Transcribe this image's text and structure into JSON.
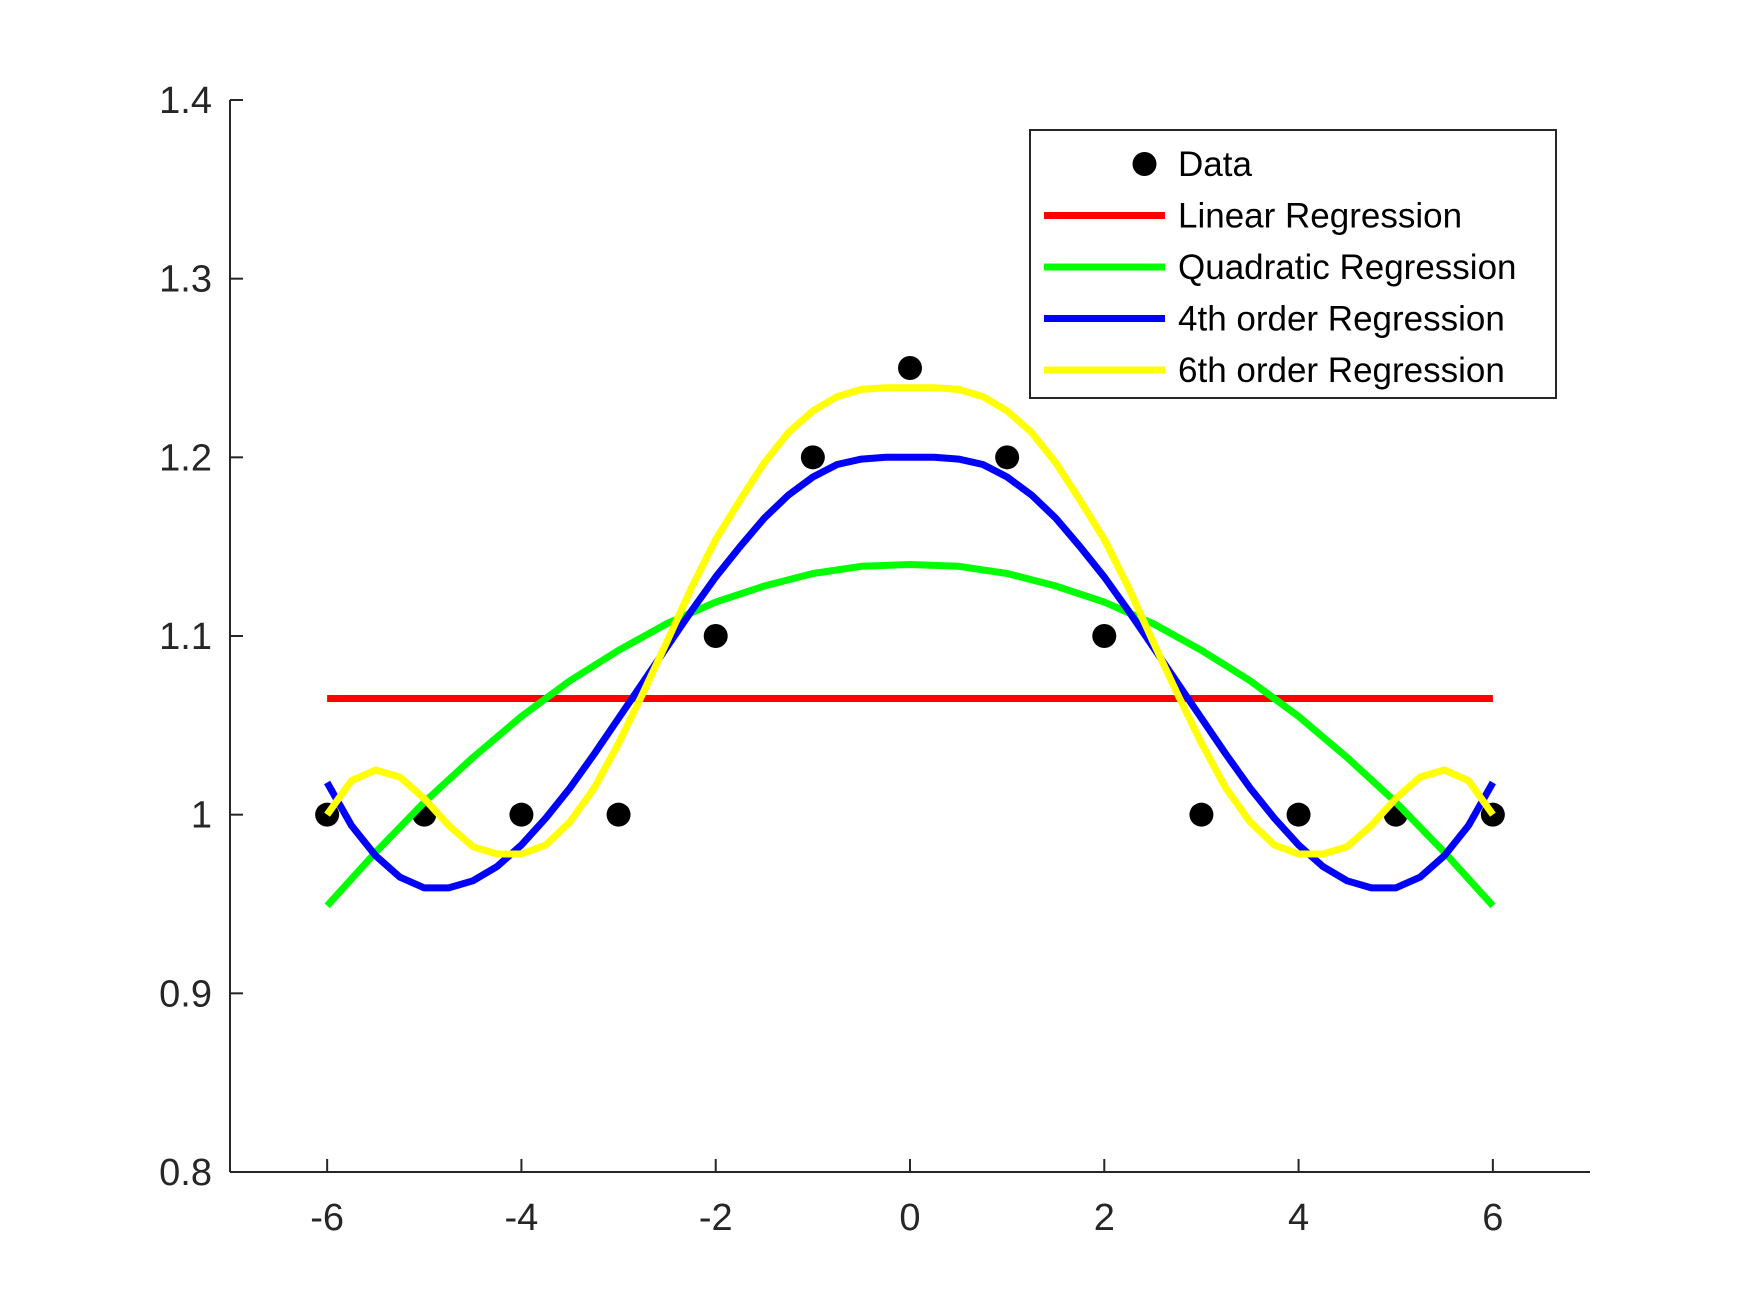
{
  "chart_data": {
    "type": "line",
    "title": "",
    "xlabel": "",
    "ylabel": "",
    "xlim": [
      -7,
      7
    ],
    "ylim": [
      0.8,
      1.4
    ],
    "x_ticks": [
      -6,
      -4,
      -2,
      0,
      2,
      4,
      6
    ],
    "x_tick_labels": [
      "-6",
      "-4",
      "-2",
      "0",
      "2",
      "4",
      "6"
    ],
    "y_ticks": [
      0.8,
      0.9,
      1.0,
      1.1,
      1.2,
      1.3,
      1.4
    ],
    "y_tick_labels": [
      "0.8",
      "0.9",
      "1",
      "1.1",
      "1.2",
      "1.3",
      "1.4"
    ],
    "grid": false,
    "legend_position": "top-right",
    "series": [
      {
        "name": "Data",
        "kind": "scatter",
        "color": "#000000",
        "x": [
          -6,
          -5,
          -4,
          -3,
          -2,
          -1,
          0,
          1,
          2,
          3,
          4,
          5,
          6
        ],
        "y": [
          1.0,
          1.0,
          1.0,
          1.0,
          1.1,
          1.2,
          1.25,
          1.2,
          1.1,
          1.0,
          1.0,
          1.0,
          1.0
        ]
      },
      {
        "name": "Linear Regression",
        "kind": "line",
        "color": "#ff0000",
        "x": [
          -6,
          -5,
          -4,
          -3,
          -2,
          -1,
          0,
          1,
          2,
          3,
          4,
          5,
          6
        ],
        "y": [
          1.065,
          1.065,
          1.065,
          1.065,
          1.065,
          1.065,
          1.065,
          1.065,
          1.065,
          1.065,
          1.065,
          1.065,
          1.065
        ]
      },
      {
        "name": "Quadratic Regression",
        "kind": "line",
        "color": "#00ff00",
        "x": [
          -6,
          -5.5,
          -5,
          -4.5,
          -4,
          -3.5,
          -3,
          -2.5,
          -2,
          -1.5,
          -1,
          -0.5,
          0,
          0.5,
          1,
          1.5,
          2,
          2.5,
          3,
          3.5,
          4,
          4.5,
          5,
          5.5,
          6
        ],
        "y": [
          0.949,
          0.979,
          1.007,
          1.032,
          1.055,
          1.075,
          1.092,
          1.107,
          1.119,
          1.128,
          1.135,
          1.139,
          1.14,
          1.139,
          1.135,
          1.128,
          1.119,
          1.107,
          1.092,
          1.075,
          1.055,
          1.032,
          1.007,
          0.979,
          0.949
        ]
      },
      {
        "name": "4th order Regression",
        "kind": "line",
        "color": "#0000ff",
        "x": [
          -6,
          -5.75,
          -5.5,
          -5.25,
          -5,
          -4.75,
          -4.5,
          -4.25,
          -4,
          -3.75,
          -3.5,
          -3.25,
          -3,
          -2.75,
          -2.5,
          -2.25,
          -2,
          -1.75,
          -1.5,
          -1.25,
          -1,
          -0.75,
          -0.5,
          -0.25,
          0,
          0.25,
          0.5,
          0.75,
          1,
          1.25,
          1.5,
          1.75,
          2,
          2.25,
          2.5,
          2.75,
          3,
          3.25,
          3.5,
          3.75,
          4,
          4.25,
          4.5,
          4.75,
          5,
          5.25,
          5.5,
          5.75,
          6
        ],
        "y": [
          1.018,
          0.994,
          0.977,
          0.965,
          0.959,
          0.959,
          0.963,
          0.971,
          0.983,
          0.998,
          1.015,
          1.034,
          1.054,
          1.074,
          1.094,
          1.114,
          1.133,
          1.15,
          1.166,
          1.179,
          1.189,
          1.196,
          1.199,
          1.2,
          1.2,
          1.2,
          1.199,
          1.196,
          1.189,
          1.179,
          1.166,
          1.15,
          1.133,
          1.114,
          1.094,
          1.074,
          1.054,
          1.034,
          1.015,
          0.998,
          0.983,
          0.971,
          0.963,
          0.959,
          0.959,
          0.965,
          0.977,
          0.994,
          1.018
        ]
      },
      {
        "name": "6th order Regression",
        "kind": "line",
        "color": "#ffff00",
        "x": [
          -6,
          -5.75,
          -5.5,
          -5.25,
          -5,
          -4.75,
          -4.5,
          -4.25,
          -4,
          -3.75,
          -3.5,
          -3.25,
          -3,
          -2.75,
          -2.5,
          -2.25,
          -2,
          -1.75,
          -1.5,
          -1.25,
          -1,
          -0.75,
          -0.5,
          -0.25,
          0,
          0.25,
          0.5,
          0.75,
          1,
          1.25,
          1.5,
          1.75,
          2,
          2.25,
          2.5,
          2.75,
          3,
          3.25,
          3.5,
          3.75,
          4,
          4.25,
          4.5,
          4.75,
          5,
          5.25,
          5.5,
          5.75,
          6
        ],
        "y": [
          1.0,
          1.019,
          1.025,
          1.021,
          1.009,
          0.994,
          0.982,
          0.978,
          0.978,
          0.983,
          0.996,
          1.015,
          1.04,
          1.068,
          1.097,
          1.127,
          1.154,
          1.176,
          1.197,
          1.214,
          1.226,
          1.234,
          1.238,
          1.239,
          1.239,
          1.239,
          1.238,
          1.234,
          1.226,
          1.214,
          1.197,
          1.176,
          1.154,
          1.127,
          1.097,
          1.068,
          1.04,
          1.015,
          0.996,
          0.983,
          0.978,
          0.978,
          0.982,
          0.994,
          1.009,
          1.021,
          1.025,
          1.019,
          1.0
        ]
      }
    ]
  }
}
